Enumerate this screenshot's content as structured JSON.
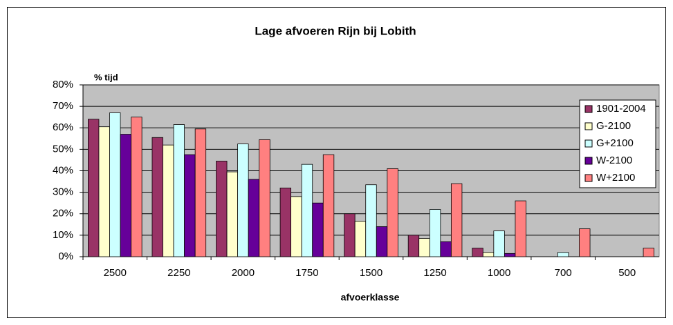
{
  "chart_data": {
    "type": "bar",
    "title": "Lage afvoeren Rijn bij Lobith",
    "y_label": "% tijd",
    "x_label": "afvoerklasse",
    "categories": [
      "2500",
      "2250",
      "2000",
      "1750",
      "1500",
      "1250",
      "1000",
      "700",
      "500"
    ],
    "series": [
      {
        "name": "1901-2004",
        "color": "#993366",
        "values": [
          64,
          55.5,
          44.5,
          32,
          20,
          10,
          4,
          0,
          0
        ]
      },
      {
        "name": "G-2100",
        "color": "#ffffcc",
        "values": [
          60.5,
          52,
          39.5,
          28,
          16.5,
          8.5,
          2,
          0,
          0
        ]
      },
      {
        "name": "G+2100",
        "color": "#ccffff",
        "values": [
          67,
          61.5,
          52.5,
          43,
          33.5,
          22,
          12,
          2,
          0
        ]
      },
      {
        "name": "W-2100",
        "color": "#660099",
        "values": [
          57,
          47.5,
          36,
          25,
          14,
          7,
          1.5,
          0,
          0
        ]
      },
      {
        "name": "W+2100",
        "color": "#ff8080",
        "values": [
          65,
          59.5,
          54.5,
          47.5,
          41,
          34,
          26,
          13,
          4
        ]
      }
    ],
    "ylim": [
      0,
      80
    ],
    "yticks": [
      {
        "value": 0,
        "label": "0%"
      },
      {
        "value": 10,
        "label": "10%"
      },
      {
        "value": 20,
        "label": "20%"
      },
      {
        "value": 30,
        "label": "30%"
      },
      {
        "value": 40,
        "label": "40%"
      },
      {
        "value": 50,
        "label": "50%"
      },
      {
        "value": 60,
        "label": "60%"
      },
      {
        "value": 70,
        "label": "70%"
      },
      {
        "value": 80,
        "label": "80%"
      }
    ],
    "grid": true,
    "legend": "upper right",
    "plot_background": "#c0c0c0"
  }
}
